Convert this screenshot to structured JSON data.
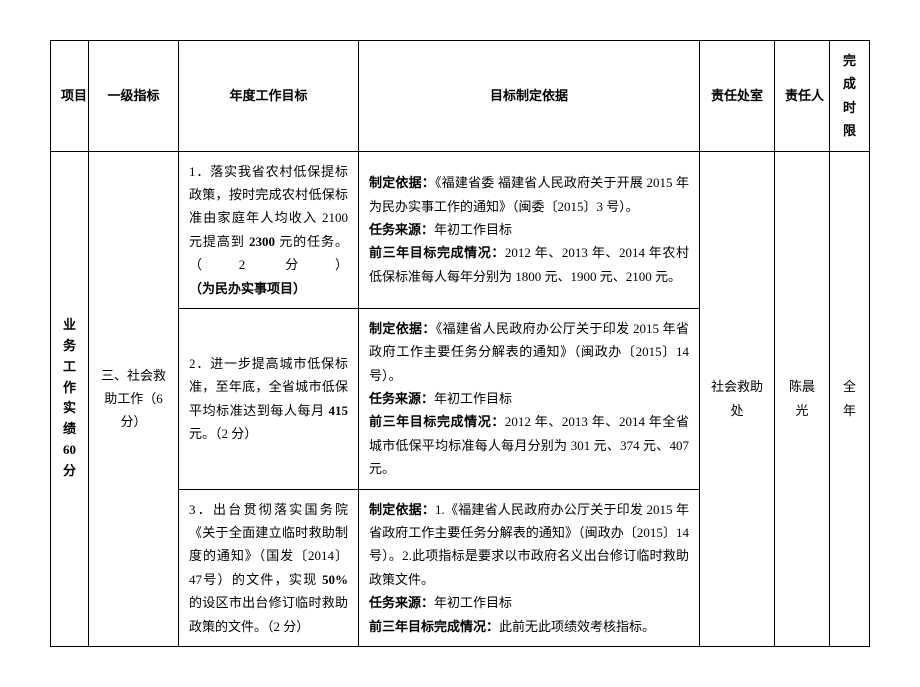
{
  "headers": {
    "project": "项目",
    "level1": "一级指标",
    "annual_goal": "年度工作目标",
    "basis": "目标制定依据",
    "dept": "责任处室",
    "person": "责任人",
    "deadline": "完成\n时限"
  },
  "project_col": "业务工作实绩60分",
  "level1_col": "三、社会救助工作（6 分）",
  "rows": [
    {
      "goal_pre": "1．落实我省农村低保提标政策，按时完成农村低保标准由家庭年人均收入 2100 元提高到 ",
      "goal_bold1": "2300",
      "goal_mid": " 元的任务。（2 分）",
      "goal_bold2": "（为民办实事项目）",
      "basis_l1_label": "制定依据：",
      "basis_l1_text": "《福建省委 福建省人民政府关于开展 2015 年为民办实事工作的通知》（闽委〔2015〕3 号）。",
      "basis_l2_label": "任务来源：",
      "basis_l2_text": "年初工作目标",
      "basis_l3_label": "前三年目标完成情况：",
      "basis_l3_text": "2012 年、2013 年、2014 年农村低保标准每人每年分别为 1800 元、1900 元、2100 元。"
    },
    {
      "goal_pre": "2．进一步提高城市低保标准，至年底，全省城市低保平均标准达到每人每月 ",
      "goal_bold1": "415",
      "goal_mid": " 元。（2 分）",
      "goal_bold2": "",
      "basis_l1_label": "制定依据：",
      "basis_l1_text": "《福建省人民政府办公厅关于印发 2015 年省政府工作主要任务分解表的通知》（闽政办〔2015〕14 号）。",
      "basis_l2_label": "任务来源：",
      "basis_l2_text": "年初工作目标",
      "basis_l3_label": "前三年目标完成情况：",
      "basis_l3_text": "2012 年、2013 年、2014 年全省城市低保平均标准每人每月分别为 301 元、374 元、407 元。"
    },
    {
      "goal_pre": "3．出台贯彻落实国务院《关于全面建立临时救助制度的通知》（国发〔2014〕47号）的文件，实现 ",
      "goal_bold1": "50%",
      "goal_mid": "的设区市出台修订临时救助政策的文件。（2 分）",
      "goal_bold2": "",
      "basis_l1_label": "制定依据：",
      "basis_l1_text": "1.《福建省人民政府办公厅关于印发 2015 年省政府工作主要任务分解表的通知》（闽政办〔2015〕14号）。2.此项指标是要求以市政府名义出台修订临时救助政策文件。",
      "basis_l2_label": "任务来源：",
      "basis_l2_text": "年初工作目标",
      "basis_l3_label": "前三年目标完成情况：",
      "basis_l3_text": "此前无此项绩效考核指标。"
    }
  ],
  "dept": "社会救助处",
  "person": "陈晨光",
  "deadline": "全年"
}
